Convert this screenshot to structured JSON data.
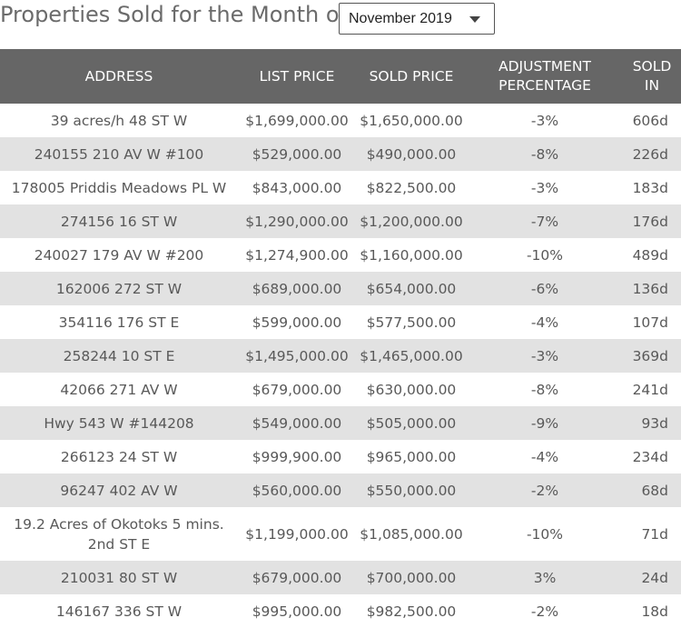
{
  "header": {
    "title": "Properties Sold for the Month of",
    "month_select": {
      "value": "November 2019"
    }
  },
  "table": {
    "columns": [
      "ADDRESS",
      "LIST PRICE",
      "SOLD PRICE",
      "ADJUSTMENT PERCENTAGE",
      "SOLD IN"
    ],
    "rows": [
      {
        "address": "39 acres/h 48 ST W",
        "list_price": "$1,699,000.00",
        "sold_price": "$1,650,000.00",
        "adjustment": "-3%",
        "sold_in": "606d"
      },
      {
        "address": "240155 210 AV W #100",
        "list_price": "$529,000.00",
        "sold_price": "$490,000.00",
        "adjustment": "-8%",
        "sold_in": "226d"
      },
      {
        "address": "178005 Priddis Meadows PL W",
        "list_price": "$843,000.00",
        "sold_price": "$822,500.00",
        "adjustment": "-3%",
        "sold_in": "183d"
      },
      {
        "address": "274156 16 ST W",
        "list_price": "$1,290,000.00",
        "sold_price": "$1,200,000.00",
        "adjustment": "-7%",
        "sold_in": "176d"
      },
      {
        "address": "240027 179 AV W #200",
        "list_price": "$1,274,900.00",
        "sold_price": "$1,160,000.00",
        "adjustment": "-10%",
        "sold_in": "489d"
      },
      {
        "address": "162006 272 ST W",
        "list_price": "$689,000.00",
        "sold_price": "$654,000.00",
        "adjustment": "-6%",
        "sold_in": "136d"
      },
      {
        "address": "354116 176 ST E",
        "list_price": "$599,000.00",
        "sold_price": "$577,500.00",
        "adjustment": "-4%",
        "sold_in": "107d"
      },
      {
        "address": "258244 10 ST E",
        "list_price": "$1,495,000.00",
        "sold_price": "$1,465,000.00",
        "adjustment": "-3%",
        "sold_in": "369d"
      },
      {
        "address": "42066 271 AV W",
        "list_price": "$679,000.00",
        "sold_price": "$630,000.00",
        "adjustment": "-8%",
        "sold_in": "241d"
      },
      {
        "address": "Hwy 543 W #144208",
        "list_price": "$549,000.00",
        "sold_price": "$505,000.00",
        "adjustment": "-9%",
        "sold_in": "93d"
      },
      {
        "address": "266123 24 ST W",
        "list_price": "$999,900.00",
        "sold_price": "$965,000.00",
        "adjustment": "-4%",
        "sold_in": "234d"
      },
      {
        "address": "96247 402 AV W",
        "list_price": "$560,000.00",
        "sold_price": "$550,000.00",
        "adjustment": "-2%",
        "sold_in": "68d"
      },
      {
        "address": "19.2 Acres of Okotoks 5 mins. 2nd ST E",
        "list_price": "$1,199,000.00",
        "sold_price": "$1,085,000.00",
        "adjustment": "-10%",
        "sold_in": "71d"
      },
      {
        "address": "210031 80 ST W",
        "list_price": "$679,000.00",
        "sold_price": "$700,000.00",
        "adjustment": "3%",
        "sold_in": "24d"
      },
      {
        "address": "146167 336 ST W",
        "list_price": "$995,000.00",
        "sold_price": "$982,500.00",
        "adjustment": "-2%",
        "sold_in": "18d"
      }
    ]
  }
}
